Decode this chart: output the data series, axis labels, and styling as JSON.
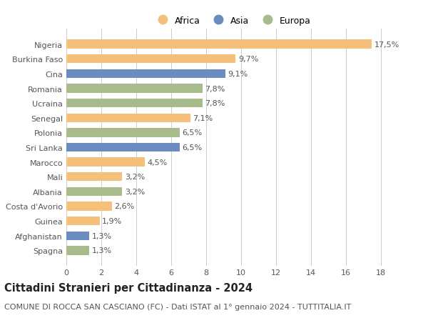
{
  "categories": [
    "Nigeria",
    "Burkina Faso",
    "Cina",
    "Romania",
    "Ucraina",
    "Senegal",
    "Polonia",
    "Sri Lanka",
    "Marocco",
    "Mali",
    "Albania",
    "Costa d'Avorio",
    "Guinea",
    "Afghanistan",
    "Spagna"
  ],
  "values": [
    17.5,
    9.7,
    9.1,
    7.8,
    7.8,
    7.1,
    6.5,
    6.5,
    4.5,
    3.2,
    3.2,
    2.6,
    1.9,
    1.3,
    1.3
  ],
  "labels": [
    "17,5%",
    "9,7%",
    "9,1%",
    "7,8%",
    "7,8%",
    "7,1%",
    "6,5%",
    "6,5%",
    "4,5%",
    "3,2%",
    "3,2%",
    "2,6%",
    "1,9%",
    "1,3%",
    "1,3%"
  ],
  "continents": [
    "Africa",
    "Africa",
    "Asia",
    "Europa",
    "Europa",
    "Africa",
    "Europa",
    "Asia",
    "Africa",
    "Africa",
    "Europa",
    "Africa",
    "Africa",
    "Asia",
    "Europa"
  ],
  "colors": {
    "Africa": "#F5C07A",
    "Asia": "#6B8CBE",
    "Europa": "#A8BB8A"
  },
  "xlim": [
    0,
    19
  ],
  "xticks": [
    0,
    2,
    4,
    6,
    8,
    10,
    12,
    14,
    16,
    18
  ],
  "title": "Cittadini Stranieri per Cittadinanza - 2024",
  "subtitle": "COMUNE DI ROCCA SAN CASCIANO (FC) - Dati ISTAT al 1° gennaio 2024 - TUTTITALIA.IT",
  "title_fontsize": 10.5,
  "subtitle_fontsize": 8,
  "label_fontsize": 8,
  "tick_fontsize": 8,
  "legend_fontsize": 9,
  "background_color": "#ffffff",
  "grid_color": "#cccccc"
}
